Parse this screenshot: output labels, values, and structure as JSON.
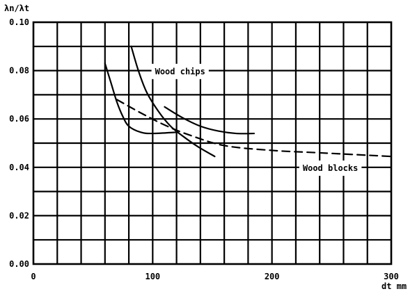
{
  "chart_data": {
    "type": "line",
    "ylabel": "λn/λt",
    "xlabel": "dt mm",
    "xlim": [
      0,
      300
    ],
    "ylim": [
      0.0,
      0.1
    ],
    "x_ticks": [
      0,
      100,
      200,
      300
    ],
    "x_tick_labels": [
      "0",
      "100",
      "200",
      "300"
    ],
    "y_ticks": [
      0.0,
      0.02,
      0.04,
      0.06,
      0.08,
      0.1
    ],
    "y_tick_labels": [
      "0.00",
      "0.02",
      "0.04",
      "0.06",
      "0.08",
      "0.10"
    ],
    "grid": true,
    "x_grid_step": 20,
    "y_grid_step": 0.01,
    "series": [
      {
        "name": "Wood chips",
        "style": "solid",
        "points": [
          [
            60,
            0.083
          ],
          [
            65,
            0.075
          ],
          [
            70,
            0.067
          ],
          [
            75,
            0.061
          ],
          [
            80,
            0.057
          ],
          [
            90,
            0.0545
          ],
          [
            100,
            0.054
          ],
          [
            120,
            0.0545
          ]
        ]
      },
      {
        "name": "Wood chips",
        "style": "solid",
        "points": [
          [
            82,
            0.09
          ],
          [
            88,
            0.08
          ],
          [
            95,
            0.071
          ],
          [
            105,
            0.063
          ],
          [
            115,
            0.057
          ],
          [
            125,
            0.053
          ],
          [
            138,
            0.0485
          ],
          [
            152,
            0.0445
          ]
        ]
      },
      {
        "name": "Wood chips",
        "style": "solid",
        "points": [
          [
            110,
            0.065
          ],
          [
            125,
            0.0605
          ],
          [
            140,
            0.057
          ],
          [
            155,
            0.055
          ],
          [
            170,
            0.054
          ],
          [
            185,
            0.054
          ]
        ]
      },
      {
        "name": "Wood blocks",
        "style": "dashed",
        "points": [
          [
            70,
            0.068
          ],
          [
            90,
            0.0625
          ],
          [
            110,
            0.0575
          ],
          [
            130,
            0.0535
          ],
          [
            160,
            0.049
          ],
          [
            200,
            0.047
          ],
          [
            240,
            0.046
          ],
          [
            300,
            0.0445
          ]
        ]
      }
    ],
    "annotations": [
      {
        "text": "Wood chips",
        "x": 123,
        "y": 0.0795
      },
      {
        "text": "Wood blocks",
        "x": 249,
        "y": 0.0395
      }
    ]
  }
}
